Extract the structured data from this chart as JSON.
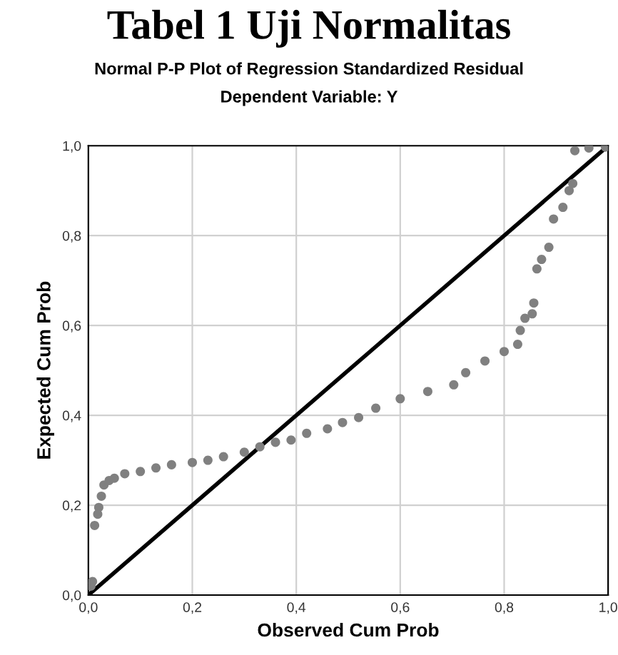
{
  "chart_data": {
    "type": "scatter",
    "title": "Tabel 1 Uji Normalitas",
    "subtitle": "Normal P-P Plot of Regression Standardized Residual\nDependent Variable: Y",
    "xlabel": "Observed Cum Prob",
    "ylabel": "Expected Cum Prob",
    "xlim": [
      0,
      1
    ],
    "ylim": [
      0,
      1
    ],
    "xticks": [
      {
        "value": 0,
        "label": "0,0"
      },
      {
        "value": 0.2,
        "label": "0,2"
      },
      {
        "value": 0.4,
        "label": "0,4"
      },
      {
        "value": 0.6,
        "label": "0,6"
      },
      {
        "value": 0.8,
        "label": "0,8"
      },
      {
        "value": 1,
        "label": "1,0"
      }
    ],
    "yticks": [
      {
        "value": 0,
        "label": "0,0"
      },
      {
        "value": 0.2,
        "label": "0,2"
      },
      {
        "value": 0.4,
        "label": "0,4"
      },
      {
        "value": 0.6,
        "label": "0,6"
      },
      {
        "value": 0.8,
        "label": "0,8"
      },
      {
        "value": 1,
        "label": "1,0"
      }
    ],
    "grid": true,
    "series": [
      {
        "marker": "circle",
        "color": "#808080",
        "x": [
          0.005,
          0.008,
          0.012,
          0.018,
          0.02,
          0.025,
          0.03,
          0.04,
          0.05,
          0.07,
          0.1,
          0.13,
          0.16,
          0.2,
          0.23,
          0.26,
          0.3,
          0.33,
          0.36,
          0.39,
          0.42,
          0.46,
          0.489,
          0.52,
          0.553,
          0.6,
          0.653,
          0.703,
          0.726,
          0.763,
          0.8,
          0.826,
          0.831,
          0.84,
          0.854,
          0.857,
          0.863,
          0.872,
          0.886,
          0.895,
          0.913,
          0.925,
          0.932,
          0.936,
          0.963,
          0.995
        ],
        "values": [
          0.02,
          0.03,
          0.155,
          0.18,
          0.195,
          0.22,
          0.245,
          0.255,
          0.26,
          0.27,
          0.275,
          0.283,
          0.29,
          0.295,
          0.3,
          0.308,
          0.318,
          0.33,
          0.34,
          0.345,
          0.36,
          0.37,
          0.384,
          0.395,
          0.416,
          0.437,
          0.453,
          0.468,
          0.495,
          0.521,
          0.542,
          0.558,
          0.589,
          0.616,
          0.626,
          0.65,
          0.726,
          0.747,
          0.774,
          0.837,
          0.863,
          0.9,
          0.916,
          0.989,
          0.995,
          0.997
        ]
      },
      {
        "type": "line",
        "marker": "none",
        "color": "#000000",
        "x": [
          0,
          1
        ],
        "values": [
          0,
          1
        ]
      }
    ]
  }
}
